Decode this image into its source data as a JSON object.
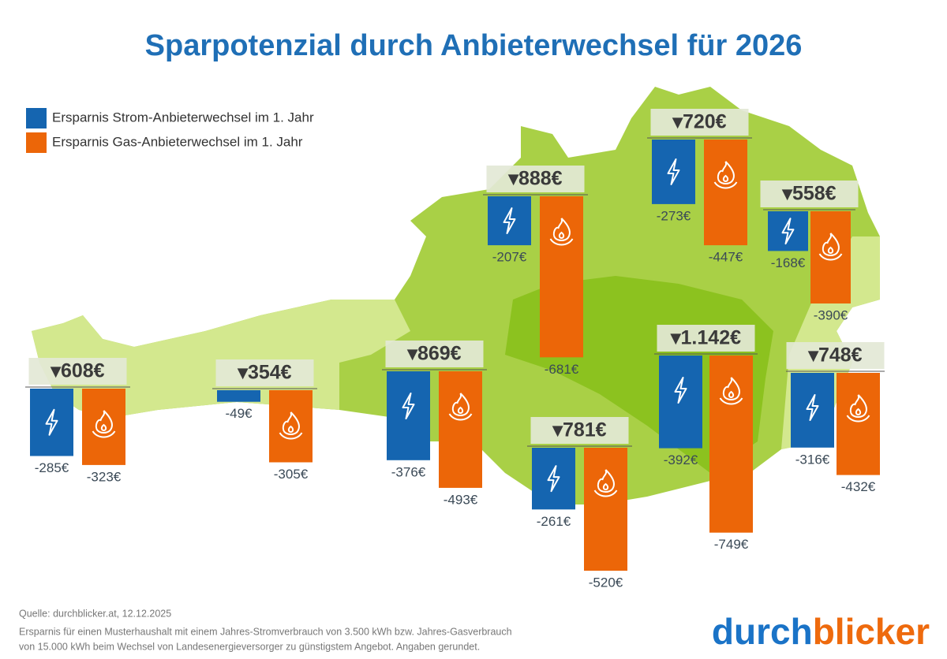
{
  "chart_data": {
    "type": "bar",
    "title": "Sparpotenzial durch Anbieterwechsel für 2026",
    "series": [
      {
        "name": "Ersparnis Strom-Anbieterwechsel im 1. Jahr",
        "color": "#1565b0",
        "values": [
          -285,
          -49,
          -376,
          -207,
          -261,
          -273,
          -392,
          -168,
          -316
        ],
        "value_labels": [
          "-285€",
          "-49€",
          "-376€",
          "-207€",
          "-261€",
          "-273€",
          "-392€",
          "-168€",
          "-316€"
        ]
      },
      {
        "name": "Ersparnis Gas-Anbieterwechsel im 1. Jahr",
        "color": "#ec6608",
        "values": [
          -323,
          -305,
          -493,
          -681,
          -520,
          -447,
          -749,
          -390,
          -432
        ],
        "value_labels": [
          "-323€",
          "-305€",
          "-493€",
          "-681€",
          "-520€",
          "-447€",
          "-749€",
          "-390€",
          "-432€"
        ]
      }
    ],
    "totals": {
      "values": [
        608,
        354,
        869,
        888,
        781,
        720,
        1142,
        558,
        748
      ],
      "value_labels": [
        "▾608€",
        "▾354€",
        "▾869€",
        "▾888€",
        "▾781€",
        "▾720€",
        "▾1.142€",
        "▾558€",
        "▾748€"
      ]
    },
    "source": "Quelle: durchblicker.at, 12.12.2025",
    "note": [
      "Ersparnis für einen Musterhaushalt mit einem Jahres-Stromverbrauch von 3.500 kWh bzw. Jahres-Gasverbrauch",
      "von 15.000 kWh beim Wechsel von Landesenergieversorger zu günstigstem Angebot. Angaben gerundet."
    ],
    "brand": [
      "durch",
      "blicker"
    ]
  }
}
